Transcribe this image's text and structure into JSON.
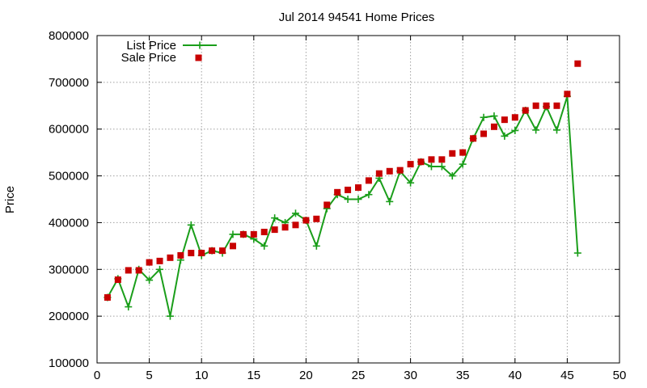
{
  "chart_data": {
    "type": "line",
    "title": "Jul 2014 94541 Home Prices",
    "xlabel": "",
    "ylabel": "Price",
    "xlim": [
      0,
      50
    ],
    "ylim": [
      100000,
      800000
    ],
    "xticks": [
      0,
      5,
      10,
      15,
      20,
      25,
      30,
      35,
      40,
      45,
      50
    ],
    "yticks": [
      100000,
      200000,
      300000,
      400000,
      500000,
      600000,
      700000,
      800000
    ],
    "grid": true,
    "legend_position": "top-left",
    "series": [
      {
        "name": "List Price",
        "style": "line-plus",
        "color": "#1a9e1a",
        "x": [
          1,
          2,
          3,
          4,
          5,
          6,
          7,
          8,
          9,
          10,
          11,
          12,
          13,
          14,
          15,
          16,
          17,
          18,
          19,
          20,
          21,
          22,
          23,
          24,
          25,
          26,
          27,
          28,
          29,
          30,
          31,
          32,
          33,
          34,
          35,
          36,
          37,
          38,
          39,
          40,
          41,
          42,
          43,
          44,
          45,
          46
        ],
        "values": [
          240000,
          280000,
          220000,
          300000,
          277000,
          300000,
          200000,
          320000,
          395000,
          330000,
          340000,
          335000,
          375000,
          375000,
          365000,
          350000,
          410000,
          400000,
          420000,
          405000,
          350000,
          430000,
          460000,
          450000,
          450000,
          460000,
          495000,
          445000,
          510000,
          485000,
          530000,
          520000,
          520000,
          500000,
          525000,
          580000,
          625000,
          628000,
          585000,
          597000,
          640000,
          598000,
          648000,
          598000,
          670000,
          335000
        ]
      },
      {
        "name": "Sale Price",
        "style": "square-markers",
        "color": "#c80000",
        "x": [
          1,
          2,
          3,
          4,
          5,
          6,
          7,
          8,
          9,
          10,
          11,
          12,
          13,
          14,
          15,
          16,
          17,
          18,
          19,
          20,
          21,
          22,
          23,
          24,
          25,
          26,
          27,
          28,
          29,
          30,
          31,
          32,
          33,
          34,
          35,
          36,
          37,
          38,
          39,
          40,
          41,
          42,
          43,
          44,
          45,
          46
        ],
        "values": [
          240000,
          278000,
          298000,
          298000,
          315000,
          318000,
          325000,
          330000,
          335000,
          335000,
          340000,
          340000,
          350000,
          375000,
          375000,
          380000,
          385000,
          390000,
          395000,
          405000,
          408000,
          438000,
          465000,
          470000,
          475000,
          490000,
          505000,
          510000,
          512000,
          525000,
          530000,
          535000,
          535000,
          548000,
          550000,
          580000,
          590000,
          605000,
          620000,
          625000,
          640000,
          650000,
          650000,
          650000,
          675000,
          740000
        ]
      }
    ]
  }
}
